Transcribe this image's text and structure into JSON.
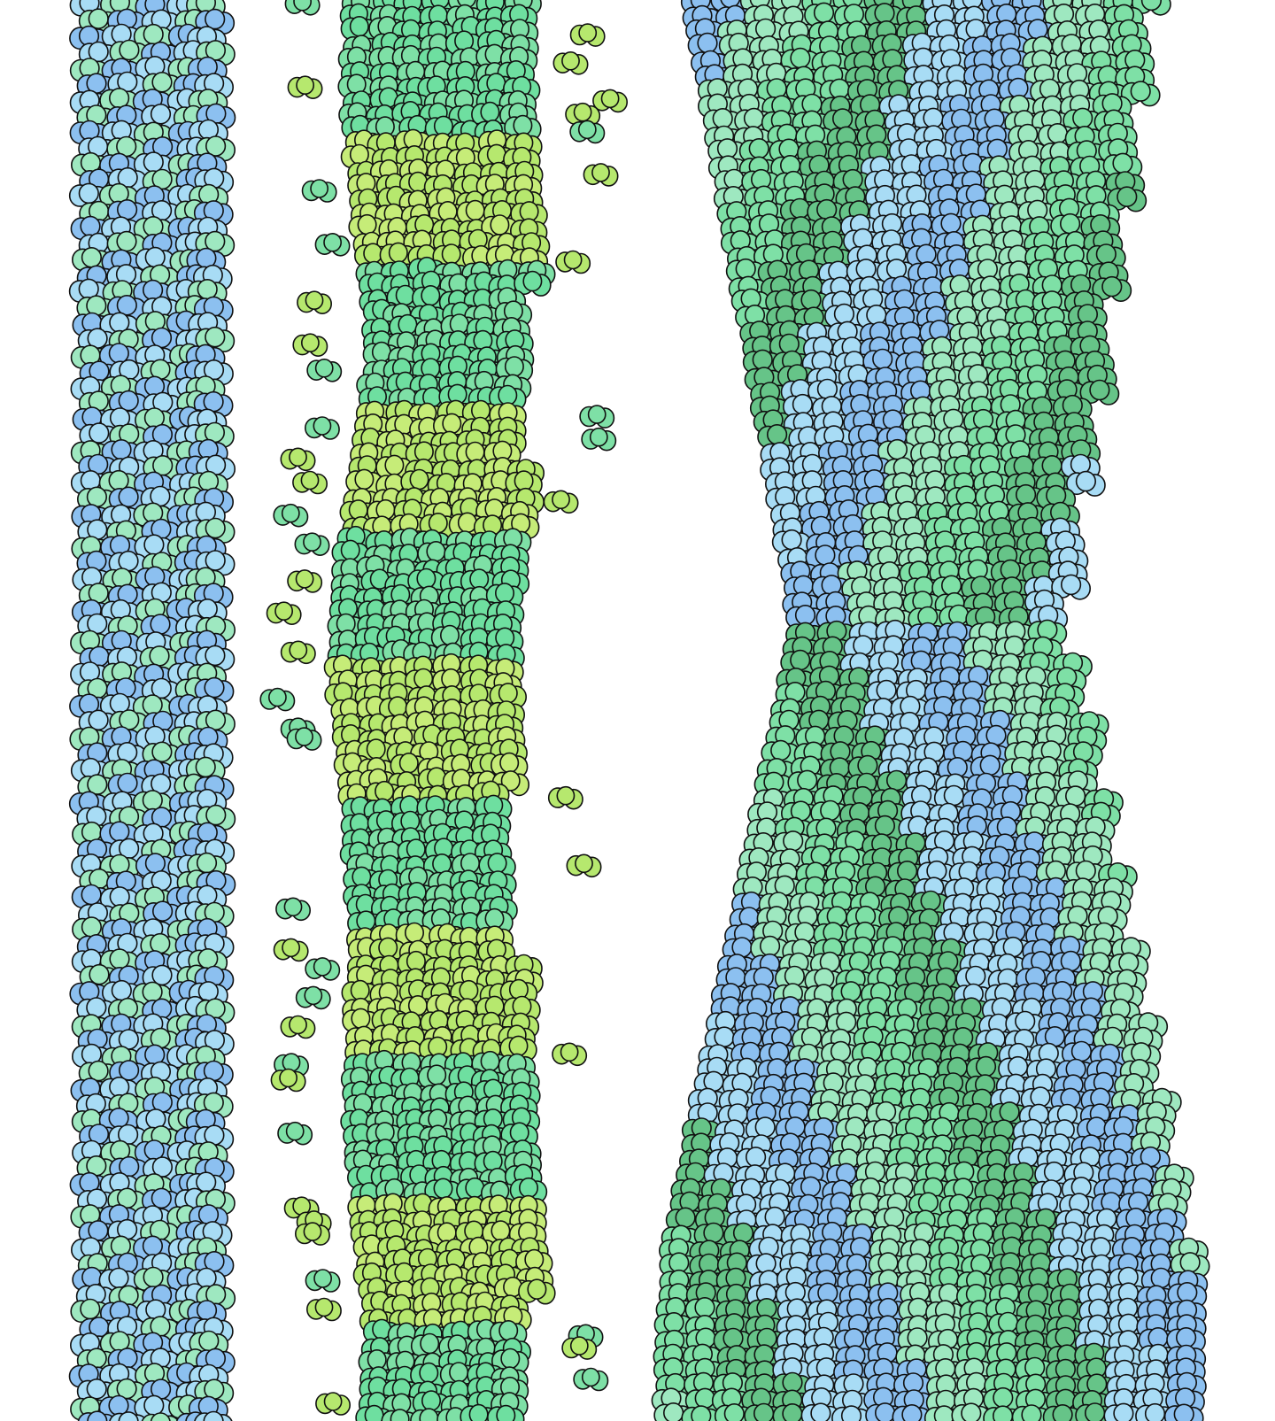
{
  "image": {
    "background": "#ffffff",
    "outline": "#111111",
    "palette": {
      "blue_light": "#a8dcf5",
      "blue_mid": "#8cc0f0",
      "mint": "#9ee8c0",
      "green": "#7ee0a6",
      "teal_green": "#6edfa0",
      "lime": "#b6e86e",
      "yellow_green": "#c6ec78",
      "dark_green": "#66c488"
    },
    "filaments": [
      {
        "name": "thin-straight-filament",
        "style": "straight",
        "colors": [
          "blue_light",
          "mint",
          "blue_mid"
        ]
      },
      {
        "name": "decorated-filament",
        "style": "decorated",
        "colors": [
          "green",
          "teal_green",
          "lime",
          "yellow_green"
        ]
      },
      {
        "name": "twisted-bundle-filament",
        "style": "twisted",
        "colors": [
          "blue_light",
          "blue_mid",
          "mint",
          "green",
          "dark_green"
        ]
      }
    ]
  }
}
